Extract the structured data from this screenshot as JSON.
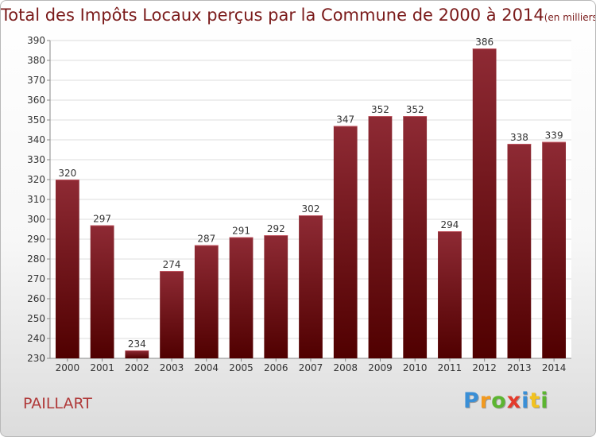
{
  "title": {
    "main": "Total des Impôts Locaux perçus par la Commune de 2000 à 2014",
    "unit": "(en milliers d'€)"
  },
  "commune": "PAILLART",
  "brand": {
    "letters": [
      {
        "char": "P",
        "color": "#3a8fd6"
      },
      {
        "char": "r",
        "color": "#f29a1f"
      },
      {
        "char": "o",
        "color": "#5cb531"
      },
      {
        "char": "x",
        "color": "#e43b2c"
      },
      {
        "char": "i",
        "color": "#3a8fd6"
      },
      {
        "char": "t",
        "color": "#f2c21f"
      },
      {
        "char": "i",
        "color": "#5cb531"
      }
    ]
  },
  "colors": {
    "bar_top": "#8e2a34",
    "bar_bottom": "#500000",
    "text": "#333333",
    "grid": "#dddddd"
  },
  "chart_data": {
    "type": "bar",
    "categories": [
      "2000",
      "2001",
      "2002",
      "2003",
      "2004",
      "2005",
      "2006",
      "2007",
      "2008",
      "2009",
      "2010",
      "2011",
      "2012",
      "2013",
      "2014"
    ],
    "values": [
      320,
      297,
      234,
      274,
      287,
      291,
      292,
      302,
      347,
      352,
      352,
      294,
      386,
      338,
      339
    ],
    "data_labels": [
      "320",
      "297",
      "234",
      "274",
      "287",
      "291",
      "292",
      "302",
      "347",
      "352",
      "352",
      "294",
      "386",
      "338",
      "339"
    ],
    "yticks": [
      "230",
      "240",
      "250",
      "260",
      "270",
      "280",
      "290",
      "300",
      "310",
      "320",
      "330",
      "340",
      "350",
      "360",
      "370",
      "380",
      "390"
    ],
    "ylim": [
      230,
      390
    ],
    "grid": true,
    "legend": "none"
  }
}
